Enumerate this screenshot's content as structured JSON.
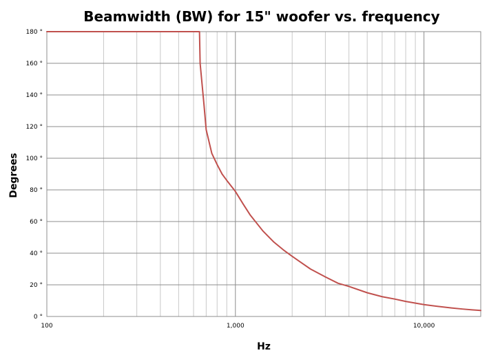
{
  "chart_data": {
    "type": "line",
    "title": "Beamwidth (BW) for 15\" woofer vs. frequency",
    "xlabel": "Hz",
    "ylabel": "Degrees",
    "x_scale": "log",
    "xlim": [
      100,
      20000
    ],
    "ylim": [
      0,
      180
    ],
    "grid": true,
    "legend": "none",
    "x_ticks": [
      {
        "value": 100,
        "label": "100"
      },
      {
        "value": 1000,
        "label": "1,000"
      },
      {
        "value": 10000,
        "label": "10,000"
      }
    ],
    "y_ticks": [
      {
        "value": 0,
        "label": "0 °"
      },
      {
        "value": 20,
        "label": "20 °"
      },
      {
        "value": 40,
        "label": "40 °"
      },
      {
        "value": 60,
        "label": "60 °"
      },
      {
        "value": 80,
        "label": "80 °"
      },
      {
        "value": 100,
        "label": "100 °"
      },
      {
        "value": 120,
        "label": "120 °"
      },
      {
        "value": 140,
        "label": "140 °"
      },
      {
        "value": 160,
        "label": "160 °"
      },
      {
        "value": 180,
        "label": "180 °"
      }
    ],
    "series": [
      {
        "color": "#c0504d",
        "x": [
          100,
          200,
          400,
          600,
          645,
          650,
          680,
          700,
          750,
          800,
          850,
          900,
          1000,
          1100,
          1200,
          1400,
          1600,
          1800,
          2000,
          2500,
          3000,
          3500,
          4000,
          5000,
          6000,
          7000,
          8000,
          10000,
          12000,
          14000,
          16000,
          18000,
          20000
        ],
        "y": [
          180,
          180,
          180,
          180,
          180,
          160,
          135,
          118,
          103,
          96,
          90,
          86,
          79,
          71,
          64,
          54,
          47,
          42,
          38,
          30,
          25,
          21,
          19,
          15,
          12.5,
          11,
          9.5,
          7.5,
          6.3,
          5.4,
          4.7,
          4.2,
          3.8
        ]
      }
    ]
  }
}
